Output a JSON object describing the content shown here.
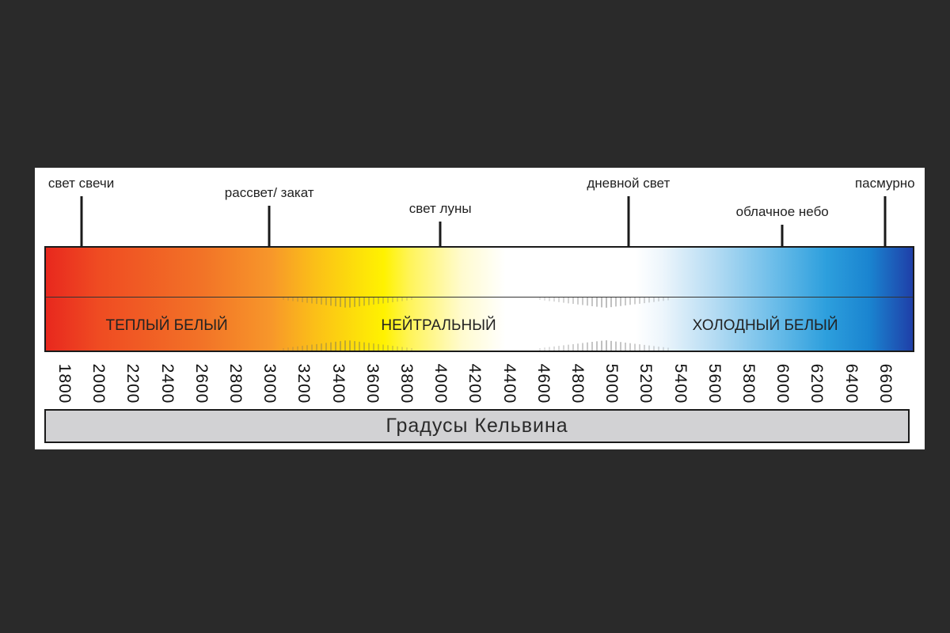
{
  "pointers": [
    {
      "label": "свет свечи",
      "kelvin": 1900
    },
    {
      "label": "рассвет/ закат",
      "kelvin": 3000
    },
    {
      "label": "свет луны",
      "kelvin": 4000
    },
    {
      "label": "дневной свет",
      "kelvin": 5100
    },
    {
      "label": "облачное небо",
      "kelvin": 6000
    },
    {
      "label": "пасмурно",
      "kelvin": 6600
    }
  ],
  "zones": [
    {
      "label": "ТЕПЛЫЙ БЕЛЫЙ",
      "kelvin": 2400
    },
    {
      "label": "НЕЙТРАЛЬНЫЙ",
      "kelvin": 3990
    },
    {
      "label": "ХОЛОДНЫЙ БЕЛЫЙ",
      "kelvin": 5900
    }
  ],
  "scale": {
    "ticks": [
      "1800",
      "2000",
      "2200",
      "2400",
      "2600",
      "2800",
      "3000",
      "3200",
      "3400",
      "3600",
      "3800",
      "4000",
      "4200",
      "4400",
      "4600",
      "4800",
      "5000",
      "5200",
      "5400",
      "5600",
      "5800",
      "6000",
      "6200",
      "6400",
      "6600"
    ]
  },
  "footer": {
    "title": "Градусы Кельвина"
  },
  "colors": {
    "background": "#2a2a2a",
    "panel": "#ffffff",
    "warm": "#e8281e",
    "neutral": "#fff200",
    "cold": "#1f3fa8",
    "footer": "#d2d2d4"
  }
}
